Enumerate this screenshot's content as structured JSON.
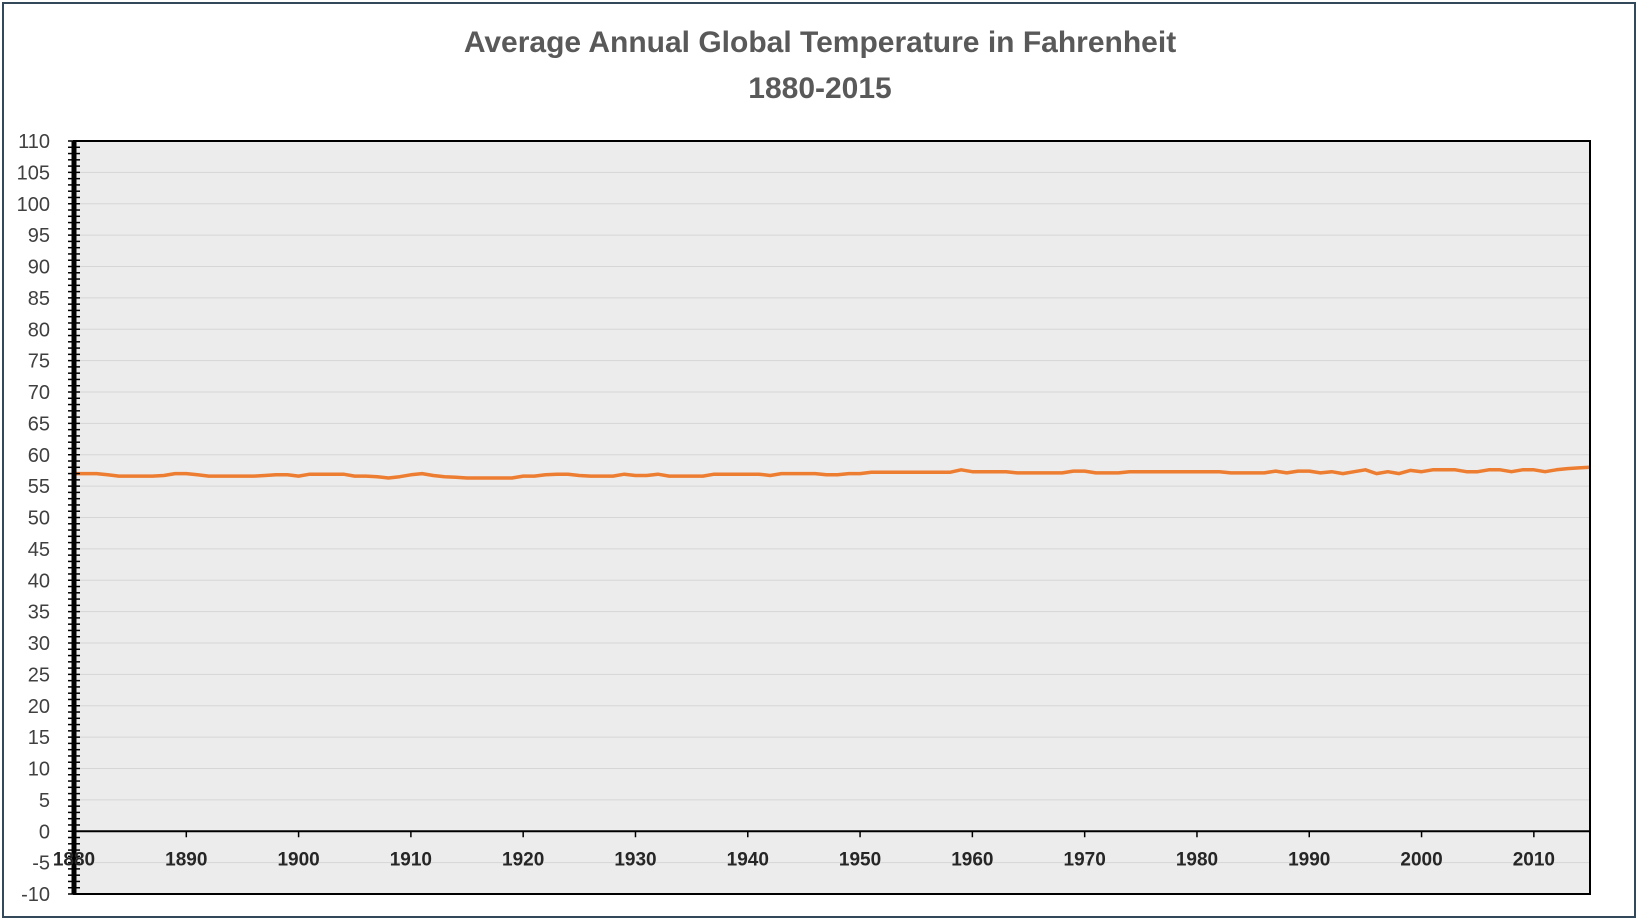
{
  "chart_data": {
    "type": "line",
    "title": "Average Annual Global Temperature in Fahrenheit",
    "subtitle": "1880-2015",
    "xlabel": "",
    "ylabel": "",
    "xlim": [
      1880,
      2015
    ],
    "ylim": [
      -10,
      110
    ],
    "y_ticks": [
      "110",
      "105",
      "100",
      "95",
      "90",
      "85",
      "80",
      "75",
      "70",
      "65",
      "60",
      "55",
      "50",
      "45",
      "40",
      "35",
      "30",
      "25",
      "20",
      "15",
      "10",
      "5",
      "0",
      "-5",
      "-10"
    ],
    "x_ticks": [
      "1880",
      "1890",
      "1900",
      "1910",
      "1920",
      "1930",
      "1940",
      "1950",
      "1960",
      "1970",
      "1980",
      "1990",
      "2000",
      "2010"
    ],
    "grid": true,
    "legend": "none",
    "colors": {
      "line": "#ed7d31",
      "plot_bg": "#ececec",
      "grid": "#d6d6d6",
      "axis": "#000000"
    },
    "series": [
      {
        "x": [
          1880,
          1881,
          1882,
          1883,
          1884,
          1885,
          1886,
          1887,
          1888,
          1889,
          1890,
          1891,
          1892,
          1893,
          1894,
          1895,
          1896,
          1897,
          1898,
          1899,
          1900,
          1901,
          1902,
          1903,
          1904,
          1905,
          1906,
          1907,
          1908,
          1909,
          1910,
          1911,
          1912,
          1913,
          1914,
          1915,
          1916,
          1917,
          1918,
          1919,
          1920,
          1921,
          1922,
          1923,
          1924,
          1925,
          1926,
          1927,
          1928,
          1929,
          1930,
          1931,
          1932,
          1933,
          1934,
          1935,
          1936,
          1937,
          1938,
          1939,
          1940,
          1941,
          1942,
          1943,
          1944,
          1945,
          1946,
          1947,
          1948,
          1949,
          1950,
          1951,
          1952,
          1953,
          1954,
          1955,
          1956,
          1957,
          1958,
          1959,
          1960,
          1961,
          1962,
          1963,
          1964,
          1965,
          1966,
          1967,
          1968,
          1969,
          1970,
          1971,
          1972,
          1973,
          1974,
          1975,
          1976,
          1977,
          1978,
          1979,
          1980,
          1981,
          1982,
          1983,
          1984,
          1985,
          1986,
          1987,
          1988,
          1989,
          1990,
          1991,
          1992,
          1993,
          1994,
          1995,
          1996,
          1997,
          1998,
          1999,
          2000,
          2001,
          2002,
          2003,
          2004,
          2005,
          2006,
          2007,
          2008,
          2009,
          2010,
          2011,
          2012,
          2013,
          2014,
          2015
        ],
        "y": [
          57.0,
          57.0,
          57.0,
          56.8,
          56.6,
          56.6,
          56.6,
          56.6,
          56.7,
          57.0,
          57.0,
          56.8,
          56.6,
          56.6,
          56.6,
          56.6,
          56.6,
          56.7,
          56.8,
          56.8,
          56.6,
          56.9,
          56.9,
          56.9,
          56.9,
          56.6,
          56.6,
          56.5,
          56.3,
          56.5,
          56.8,
          57.0,
          56.7,
          56.5,
          56.4,
          56.3,
          56.3,
          56.3,
          56.3,
          56.3,
          56.6,
          56.6,
          56.8,
          56.9,
          56.9,
          56.7,
          56.6,
          56.6,
          56.6,
          56.9,
          56.7,
          56.7,
          56.9,
          56.6,
          56.6,
          56.6,
          56.6,
          56.9,
          56.9,
          56.9,
          56.9,
          56.9,
          56.7,
          57.0,
          57.0,
          57.0,
          57.0,
          56.8,
          56.8,
          57.0,
          57.0,
          57.2,
          57.2,
          57.2,
          57.2,
          57.2,
          57.2,
          57.2,
          57.2,
          57.6,
          57.3,
          57.3,
          57.3,
          57.3,
          57.1,
          57.1,
          57.1,
          57.1,
          57.1,
          57.4,
          57.4,
          57.1,
          57.1,
          57.1,
          57.3,
          57.3,
          57.3,
          57.3,
          57.3,
          57.3,
          57.3,
          57.3,
          57.3,
          57.1,
          57.1,
          57.1,
          57.1,
          57.4,
          57.1,
          57.4,
          57.4,
          57.1,
          57.3,
          57.0,
          57.3,
          57.6,
          57.0,
          57.3,
          57.0,
          57.5,
          57.3,
          57.6,
          57.6,
          57.6,
          57.3,
          57.3,
          57.6,
          57.6,
          57.3,
          57.6,
          57.6,
          57.3,
          57.6,
          57.8,
          57.9,
          58.0
        ]
      }
    ]
  }
}
